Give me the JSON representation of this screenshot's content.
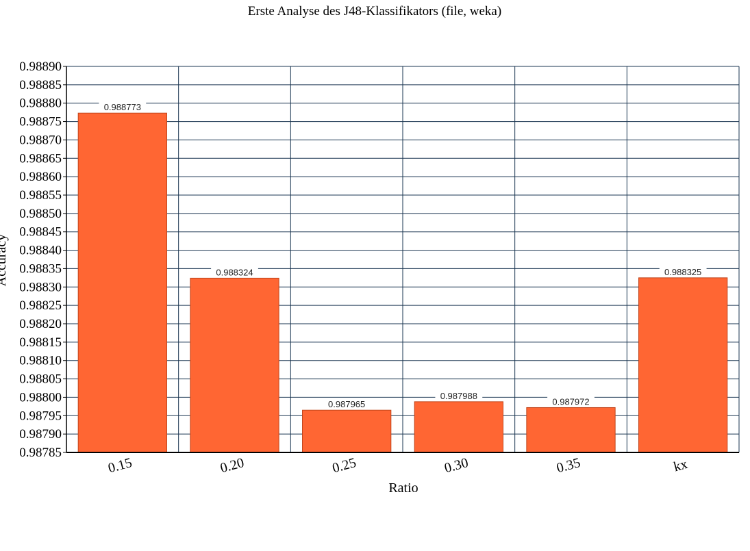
{
  "chart_data": {
    "type": "bar",
    "title": "Erste Analyse des J48-Klassifikators (file, weka)",
    "xlabel": "Ratio",
    "ylabel": "Accuracy",
    "categories": [
      "0.15",
      "0.20",
      "0.25",
      "0.30",
      "0.35",
      "kx"
    ],
    "values": [
      0.988773,
      0.988324,
      0.987965,
      0.987988,
      0.987972,
      0.988325
    ],
    "data_labels": [
      "0.988773",
      "0.988324",
      "0.987965",
      "0.987988",
      "0.987972",
      "0.988325"
    ],
    "ylim": [
      0.98785,
      0.9889
    ],
    "yticks": [
      0.98785,
      0.9879,
      0.98795,
      0.988,
      0.98805,
      0.9881,
      0.98815,
      0.9882,
      0.98825,
      0.9883,
      0.98835,
      0.9884,
      0.98845,
      0.9885,
      0.98855,
      0.9886,
      0.98865,
      0.9887,
      0.98875,
      0.9888,
      0.98885,
      0.9889
    ],
    "ytick_labels": [
      "0.98785",
      "0.98790",
      "0.98795",
      "0.98800",
      "0.98805",
      "0.98810",
      "0.98815",
      "0.98820",
      "0.98825",
      "0.98830",
      "0.98835",
      "0.98840",
      "0.98845",
      "0.98850",
      "0.98855",
      "0.98860",
      "0.98865",
      "0.98870",
      "0.98875",
      "0.98880",
      "0.98885",
      "0.98890"
    ],
    "grid": true,
    "legend": "none",
    "colors": {
      "bar": "#ff6633",
      "bar_edge": "#c0441a",
      "grid": "#1a3550",
      "label_bg": "#ffffff"
    }
  }
}
